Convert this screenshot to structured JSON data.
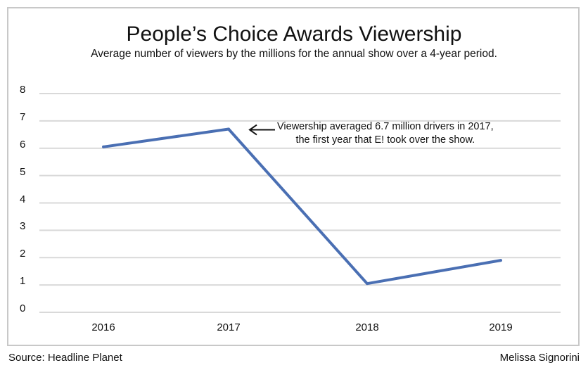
{
  "chart_data": {
    "type": "line",
    "title": "People’s Choice Awards Viewership",
    "subtitle": "Average number of viewers by the millions for the annual show over a 4-year period.",
    "xlabel": "",
    "ylabel": "",
    "categories": [
      "2016",
      "2017",
      "2018",
      "2019"
    ],
    "series": [
      {
        "values": [
          6.05,
          6.7,
          1.05,
          1.9
        ],
        "color": "#4a6fb3"
      }
    ],
    "ylim": [
      0,
      8
    ],
    "yticks": [
      "0",
      "1",
      "2",
      "3",
      "4",
      "5",
      "6",
      "7",
      "8"
    ],
    "grid": true,
    "annotation": {
      "category": "2017",
      "value": 6.7,
      "line1": "Viewership averaged 6.7 million drivers in 2017,",
      "line2": "the first year that E! took over the show."
    }
  },
  "footer": {
    "source": "Source: Headline Planet",
    "author": "Melissa Signorini"
  },
  "colors": {
    "line": "#4a6fb3",
    "grid": "#d9d9d9",
    "border": "#c8c8c8"
  }
}
